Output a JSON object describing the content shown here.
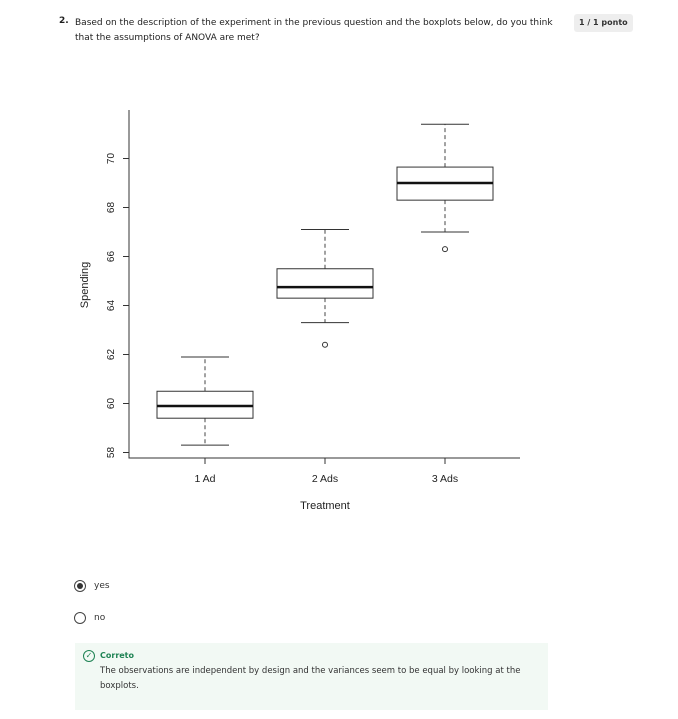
{
  "question": {
    "number": "2.",
    "text": "Based on the description of the experiment in the previous question and the boxplots below, do you think that the assumptions of ANOVA are met?",
    "score": "1 / 1 ponto"
  },
  "chart_data": {
    "type": "boxplot",
    "xlabel": "Treatment",
    "ylabel": "Spending",
    "ylim": [
      58,
      71.4
    ],
    "yticks": [
      "58",
      "60",
      "62",
      "64",
      "66",
      "68",
      "70"
    ],
    "categories": [
      "1 Ad",
      "2 Ads",
      "3 Ads"
    ],
    "boxes": [
      {
        "category": "1 Ad",
        "lower_whisker": 58.3,
        "q1": 59.4,
        "median": 59.9,
        "q3": 60.5,
        "upper_whisker": 61.9,
        "outliers": []
      },
      {
        "category": "2 Ads",
        "lower_whisker": 63.3,
        "q1": 64.3,
        "median": 64.75,
        "q3": 65.5,
        "upper_whisker": 67.1,
        "outliers": [
          62.4
        ]
      },
      {
        "category": "3 Ads",
        "lower_whisker": 67.0,
        "q1": 68.3,
        "median": 69.0,
        "q3": 69.65,
        "upper_whisker": 71.4,
        "outliers": [
          66.3
        ]
      }
    ],
    "grid": false,
    "legend": "none"
  },
  "options": [
    {
      "label": "yes",
      "selected": true
    },
    {
      "label": "no",
      "selected": false
    }
  ],
  "feedback": {
    "status": "Correto",
    "text": "The observations are independent by design and the variances seem to be equal by looking at the boxplots.",
    "accent_color": "#1f8354"
  }
}
